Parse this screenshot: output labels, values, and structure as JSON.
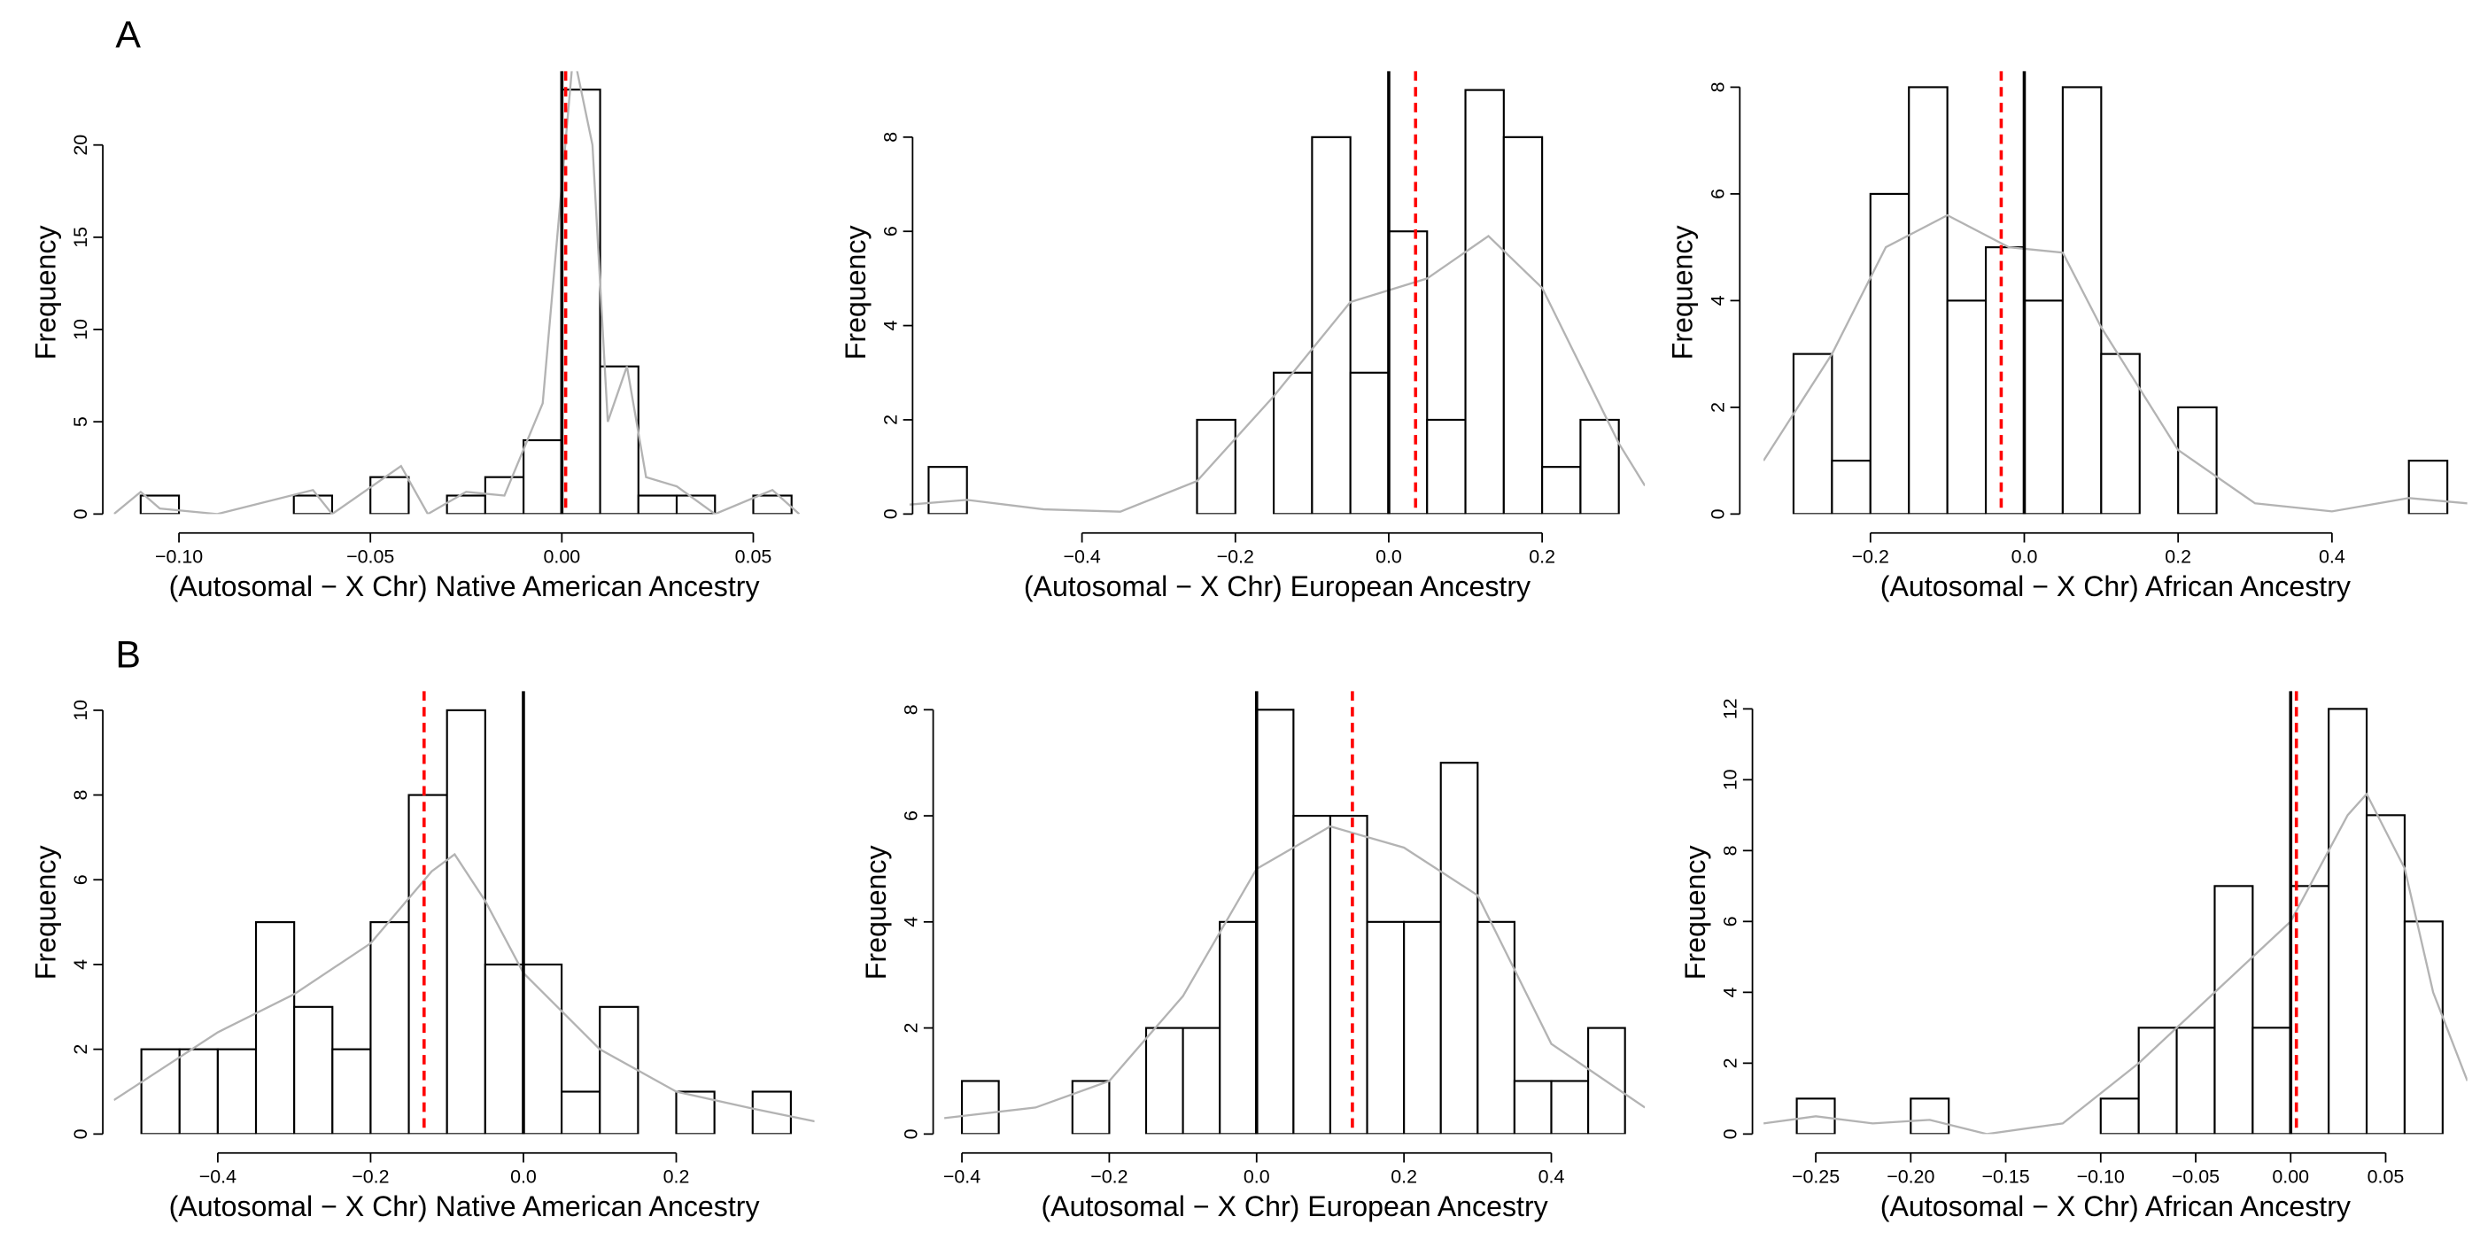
{
  "panel_labels": [
    "A",
    "B"
  ],
  "chart_data": [
    {
      "type": "histogram",
      "xlabel": "(Autosomal − X Chr) Native American Ancestry",
      "ylabel": "Frequency",
      "bins": [
        -0.11,
        -0.1,
        -0.09,
        -0.08,
        -0.07,
        -0.06,
        -0.05,
        -0.04,
        -0.03,
        -0.02,
        -0.01,
        0.0,
        0.01,
        0.02,
        0.03,
        0.04,
        0.05,
        0.06
      ],
      "values": [
        1,
        0,
        0,
        0,
        1,
        0,
        2,
        0,
        1,
        2,
        4,
        23,
        8,
        1,
        1,
        0,
        1
      ],
      "color": "#ffffff",
      "edge_color": "#000000",
      "xlim": [
        -0.117,
        0.066
      ],
      "ylim": [
        0,
        24
      ],
      "xticks": [
        {
          "value": -0.1,
          "label": "−0.10"
        },
        {
          "value": -0.05,
          "label": "−0.05"
        },
        {
          "value": 0,
          "label": "0.00"
        },
        {
          "value": 0.05,
          "label": "0.05"
        }
      ],
      "yticks": [
        0,
        5,
        10,
        15,
        20
      ],
      "vlines": [
        {
          "value": 0,
          "color": "#000000",
          "style": "solid"
        },
        {
          "value": 0.001,
          "color": "#ff0000",
          "style": "dashed"
        }
      ],
      "density": {
        "color": "#b3b3b3",
        "x": [
          -0.117,
          -0.11,
          -0.105,
          -0.09,
          -0.065,
          -0.06,
          -0.042,
          -0.035,
          -0.025,
          -0.015,
          -0.005,
          0.003,
          0.008,
          0.012,
          0.017,
          0.022,
          0.03,
          0.04,
          0.055,
          0.062
        ],
        "values": [
          0,
          1.2,
          0.3,
          0,
          1.3,
          0,
          2.6,
          0,
          1.2,
          1.0,
          6,
          25,
          20,
          5,
          8,
          2,
          1.5,
          0,
          1.3,
          0
        ]
      }
    },
    {
      "type": "histogram",
      "xlabel": "(Autosomal − X Chr) European Ancestry",
      "ylabel": "Frequency",
      "bins": [
        -0.6,
        -0.55,
        -0.5,
        -0.45,
        -0.4,
        -0.35,
        -0.3,
        -0.25,
        -0.2,
        -0.15,
        -0.1,
        -0.05,
        0,
        0.05,
        0.1,
        0.15,
        0.2,
        0.25,
        0.3
      ],
      "values": [
        1,
        0,
        0,
        0,
        0,
        0,
        0,
        2,
        0,
        3,
        8,
        3,
        6,
        2,
        9,
        8,
        1,
        2
      ],
      "color": "#ffffff",
      "edge_color": "#000000",
      "xlim": [
        -0.625,
        0.334
      ],
      "ylim": [
        0,
        9.4
      ],
      "xticks": [
        {
          "value": -0.4,
          "label": "−0.4"
        },
        {
          "value": -0.2,
          "label": "−0.2"
        },
        {
          "value": 0,
          "label": "0.0"
        },
        {
          "value": 0.2,
          "label": "0.2"
        }
      ],
      "yticks": [
        0,
        2,
        4,
        6,
        8
      ],
      "vlines": [
        {
          "value": 0,
          "color": "#000000",
          "style": "solid"
        },
        {
          "value": 0.035,
          "color": "#ff0000",
          "style": "dashed"
        }
      ],
      "density": {
        "color": "#b3b3b3",
        "x": [
          -0.625,
          -0.55,
          -0.45,
          -0.35,
          -0.25,
          -0.15,
          -0.05,
          0.05,
          0.13,
          0.2,
          0.3,
          0.334
        ],
        "values": [
          0.2,
          0.3,
          0.1,
          0.05,
          0.7,
          2.5,
          4.5,
          5.0,
          5.9,
          4.8,
          1.5,
          0.6
        ]
      }
    },
    {
      "type": "histogram",
      "xlabel": "(Autosomal − X Chr) African Ancestry",
      "ylabel": "Frequency",
      "bins": [
        -0.3,
        -0.25,
        -0.2,
        -0.15,
        -0.1,
        -0.05,
        0,
        0.05,
        0.1,
        0.15,
        0.2,
        0.25,
        0.3,
        0.35,
        0.4,
        0.45,
        0.5,
        0.55
      ],
      "values": [
        3,
        1,
        6,
        8,
        4,
        5,
        4,
        8,
        3,
        0,
        2,
        0,
        0,
        0,
        0,
        0,
        1
      ],
      "color": "#ffffff",
      "edge_color": "#000000",
      "xlim": [
        -0.339,
        0.576
      ],
      "ylim": [
        0,
        8.3
      ],
      "xticks": [
        {
          "value": -0.2,
          "label": "−0.2"
        },
        {
          "value": 0,
          "label": "0.0"
        },
        {
          "value": 0.2,
          "label": "0.2"
        },
        {
          "value": 0.4,
          "label": "0.4"
        }
      ],
      "yticks": [
        0,
        2,
        4,
        6,
        8
      ],
      "vlines": [
        {
          "value": 0,
          "color": "#000000",
          "style": "solid"
        },
        {
          "value": -0.03,
          "color": "#ff0000",
          "style": "dashed"
        }
      ],
      "density": {
        "color": "#b3b3b3",
        "x": [
          -0.339,
          -0.25,
          -0.18,
          -0.1,
          -0.02,
          0.05,
          0.1,
          0.2,
          0.3,
          0.4,
          0.5,
          0.576
        ],
        "values": [
          1.0,
          3,
          5,
          5.6,
          5.0,
          4.9,
          3.5,
          1.2,
          0.2,
          0.05,
          0.3,
          0.2
        ]
      }
    },
    {
      "type": "histogram",
      "xlabel": "(Autosomal − X Chr) Native American Ancestry",
      "ylabel": "Frequency",
      "bins": [
        -0.5,
        -0.45,
        -0.4,
        -0.35,
        -0.3,
        -0.25,
        -0.2,
        -0.15,
        -0.1,
        -0.05,
        0,
        0.05,
        0.1,
        0.15,
        0.2,
        0.25,
        0.3,
        0.35
      ],
      "values": [
        2,
        2,
        2,
        5,
        3,
        2,
        5,
        8,
        10,
        4,
        4,
        1,
        3,
        0,
        1,
        0,
        1
      ],
      "color": "#ffffff",
      "edge_color": "#000000",
      "xlim": [
        -0.536,
        0.381
      ],
      "ylim": [
        0,
        10.45
      ],
      "xticks": [
        {
          "value": -0.4,
          "label": "−0.4"
        },
        {
          "value": -0.2,
          "label": "−0.2"
        },
        {
          "value": 0,
          "label": "0.0"
        },
        {
          "value": 0.2,
          "label": "0.2"
        }
      ],
      "yticks": [
        0,
        2,
        4,
        6,
        8,
        10
      ],
      "vlines": [
        {
          "value": 0,
          "color": "#000000",
          "style": "solid"
        },
        {
          "value": -0.13,
          "color": "#ff0000",
          "style": "dashed"
        }
      ],
      "density": {
        "color": "#b3b3b3",
        "x": [
          -0.536,
          -0.4,
          -0.3,
          -0.2,
          -0.12,
          -0.09,
          -0.05,
          0,
          0.1,
          0.2,
          0.3,
          0.381
        ],
        "values": [
          0.8,
          2.4,
          3.3,
          4.5,
          6.2,
          6.6,
          5.5,
          3.8,
          2.0,
          1.0,
          0.6,
          0.3
        ]
      }
    },
    {
      "type": "histogram",
      "xlabel": "(Autosomal − X Chr) European Ancestry",
      "ylabel": "Frequency",
      "bins": [
        -0.4,
        -0.35,
        -0.3,
        -0.25,
        -0.2,
        -0.15,
        -0.1,
        -0.05,
        0,
        0.05,
        0.1,
        0.15,
        0.2,
        0.25,
        0.3,
        0.35,
        0.4,
        0.45,
        0.5
      ],
      "values": [
        1,
        0,
        0,
        1,
        0,
        2,
        2,
        4,
        8,
        6,
        6,
        4,
        4,
        7,
        4,
        1,
        1,
        2
      ],
      "color": "#ffffff",
      "edge_color": "#000000",
      "xlim": [
        -0.424,
        0.527
      ],
      "ylim": [
        0,
        8.35
      ],
      "xticks": [
        {
          "value": -0.4,
          "label": "−0.4"
        },
        {
          "value": -0.2,
          "label": "−0.2"
        },
        {
          "value": 0,
          "label": "0.0"
        },
        {
          "value": 0.2,
          "label": "0.2"
        },
        {
          "value": 0.4,
          "label": "0.4"
        }
      ],
      "yticks": [
        0,
        2,
        4,
        6,
        8
      ],
      "vlines": [
        {
          "value": 0,
          "color": "#000000",
          "style": "solid"
        },
        {
          "value": 0.13,
          "color": "#ff0000",
          "style": "dashed"
        }
      ],
      "density": {
        "color": "#b3b3b3",
        "x": [
          -0.424,
          -0.3,
          -0.2,
          -0.1,
          0,
          0.1,
          0.2,
          0.3,
          0.4,
          0.527
        ],
        "values": [
          0.3,
          0.5,
          1.0,
          2.6,
          5.0,
          5.8,
          5.4,
          4.5,
          1.7,
          0.5
        ]
      }
    },
    {
      "type": "histogram",
      "xlabel": "(Autosomal − X Chr) African Ancestry",
      "ylabel": "Frequency",
      "bins": [
        -0.26,
        -0.24,
        -0.22,
        -0.2,
        -0.18,
        -0.16,
        -0.14,
        -0.12,
        -0.1,
        -0.08,
        -0.06,
        -0.04,
        -0.02,
        0,
        0.02,
        0.04,
        0.06,
        0.08
      ],
      "values": [
        1,
        0,
        0,
        1,
        0,
        0,
        0,
        0,
        1,
        3,
        3,
        7,
        3,
        7,
        12,
        9,
        6
      ],
      "color": "#ffffff",
      "edge_color": "#000000",
      "xlim": [
        -0.2775,
        0.093
      ],
      "ylim": [
        0,
        12.5
      ],
      "xticks": [
        {
          "value": -0.25,
          "label": "−0.25"
        },
        {
          "value": -0.2,
          "label": "−0.20"
        },
        {
          "value": -0.15,
          "label": "−0.15"
        },
        {
          "value": -0.1,
          "label": "−0.10"
        },
        {
          "value": -0.05,
          "label": "−0.05"
        },
        {
          "value": 0,
          "label": "0.00"
        },
        {
          "value": 0.05,
          "label": "0.05"
        }
      ],
      "yticks": [
        0,
        2,
        4,
        6,
        8,
        10,
        12
      ],
      "vlines": [
        {
          "value": 0,
          "color": "#000000",
          "style": "solid"
        },
        {
          "value": 0.003,
          "color": "#ff0000",
          "style": "dashed"
        }
      ],
      "density": {
        "color": "#b3b3b3",
        "x": [
          -0.2775,
          -0.25,
          -0.22,
          -0.19,
          -0.16,
          -0.12,
          -0.08,
          -0.04,
          0,
          0.03,
          0.04,
          0.06,
          0.075,
          0.093
        ],
        "values": [
          0.3,
          0.5,
          0.3,
          0.4,
          0,
          0.3,
          2.0,
          4.0,
          6.0,
          9.0,
          9.6,
          7.5,
          4,
          1.5
        ]
      }
    }
  ]
}
